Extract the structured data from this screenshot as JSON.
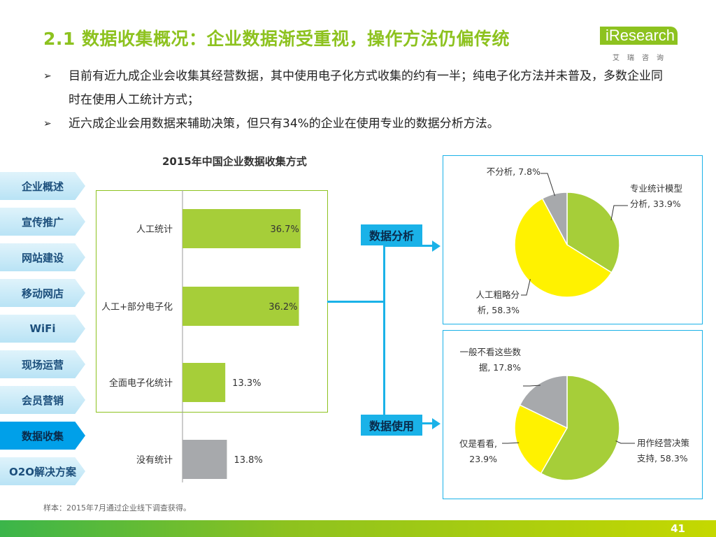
{
  "header": {
    "title": "2.1 数据收集概况：企业数据渐受重视，操作方法仍偏传统",
    "logo_brand": "iResearch",
    "logo_sub": "艾瑞咨询"
  },
  "bullets": [
    "目前有近九成企业会收集其经营数据，其中使用电子化方式收集的约有一半；纯电子化方法并未普及，多数企业同时在使用人工统计方式；",
    "近六成企业会用数据来辅助决策，但只有34%的企业在使用专业的数据分析方法。"
  ],
  "sidebar": {
    "items": [
      {
        "label": "企业概述"
      },
      {
        "label": "宣传推广"
      },
      {
        "label": "网站建设"
      },
      {
        "label": "移动网店"
      },
      {
        "label": "WiFi"
      },
      {
        "label": "现场运营"
      },
      {
        "label": "会员营销"
      },
      {
        "label": "数据收集",
        "active": true
      },
      {
        "label": "O2O解决方案"
      }
    ]
  },
  "tags": {
    "analysis": "数据分析",
    "usage": "数据使用"
  },
  "note": "样本：2015年7月通过企业线下调查获得。",
  "page_number": "41",
  "colors": {
    "green": "#A6CE39",
    "yellow": "#FFF200",
    "gray": "#A7A9AC",
    "blue": "#1AB2E8",
    "title_green": "#8DC21F"
  },
  "chart_data": [
    {
      "type": "bar",
      "orientation": "horizontal",
      "title": "2015年中国企业数据收集方式",
      "categories": [
        "人工统计",
        "人工+部分电子化",
        "全面电子化统计",
        "没有统计"
      ],
      "values": [
        36.7,
        36.2,
        13.3,
        13.8
      ],
      "value_labels": [
        "36.7%",
        "36.2%",
        "13.3%",
        "13.8%"
      ],
      "bar_colors": [
        "#A6CE39",
        "#A6CE39",
        "#A6CE39",
        "#A7A9AC"
      ],
      "xlim": [
        0,
        50
      ]
    },
    {
      "type": "pie",
      "title": "",
      "labels": [
        "专业统计模型分析, 33.9%",
        "人工粗略分析, 58.3%",
        "不分析, 7.8%"
      ],
      "values": [
        33.9,
        58.3,
        7.8
      ],
      "colors": [
        "#A6CE39",
        "#FFF200",
        "#A7A9AC"
      ]
    },
    {
      "type": "pie",
      "title": "",
      "labels": [
        "用作经营决策支持, 58.3%",
        "仅是看看, 23.9%",
        "一般不看这些数据, 17.8%"
      ],
      "values": [
        58.3,
        23.9,
        17.8
      ],
      "colors": [
        "#A6CE39",
        "#FFF200",
        "#A7A9AC"
      ]
    }
  ]
}
